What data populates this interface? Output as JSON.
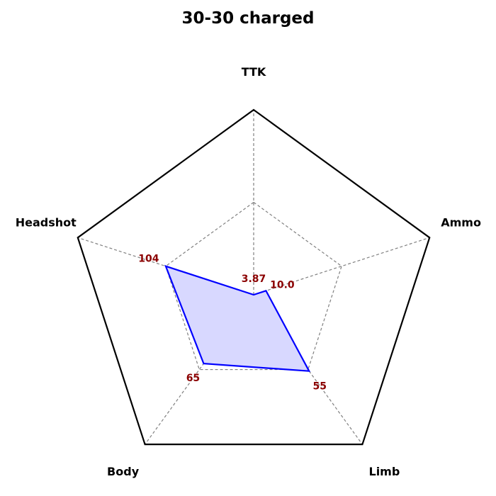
{
  "chart_data": {
    "type": "radar",
    "title": "30-30 charged",
    "axes": [
      "TTK",
      "Ammo",
      "Limb",
      "Body",
      "Headshot"
    ],
    "series": [
      {
        "values": [
          3.87,
          10.0,
          55,
          65,
          104
        ],
        "value_labels": [
          "3.87",
          "10.0",
          "55",
          "65",
          "104"
        ],
        "normalized": [
          0.0,
          0.07,
          0.51,
          0.46,
          0.5
        ]
      }
    ],
    "grid_levels": [
      0.5,
      1.0
    ],
    "colors": {
      "series_line": "#0000ff",
      "series_fill": "#d8d8ff",
      "value_label": "#8b0000",
      "outer_frame": "#000000",
      "grid": "#808080"
    }
  }
}
